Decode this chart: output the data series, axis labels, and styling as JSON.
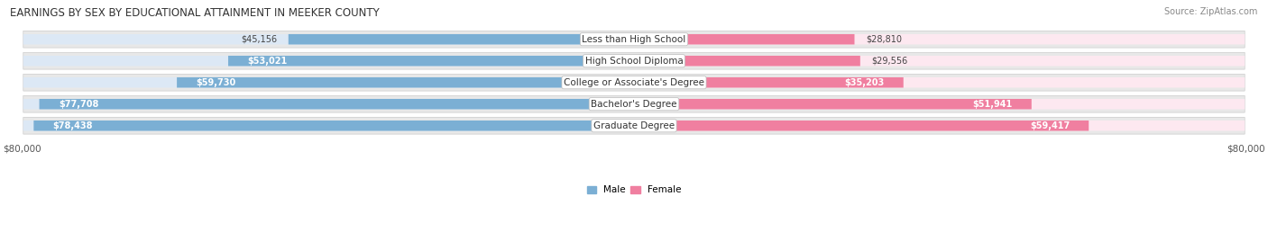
{
  "title": "EARNINGS BY SEX BY EDUCATIONAL ATTAINMENT IN MEEKER COUNTY",
  "source": "Source: ZipAtlas.com",
  "categories": [
    "Less than High School",
    "High School Diploma",
    "College or Associate's Degree",
    "Bachelor's Degree",
    "Graduate Degree"
  ],
  "male_values": [
    45156,
    53021,
    59730,
    77708,
    78438
  ],
  "female_values": [
    28810,
    29556,
    35203,
    51941,
    59417
  ],
  "male_color": "#7bafd4",
  "female_color": "#f07fa0",
  "male_label": "Male",
  "female_label": "Female",
  "xlim": 80000,
  "bg_color": "#ffffff",
  "row_bg_color": "#e8e8e8",
  "bar_inner_bg_male": "#dce8f5",
  "bar_inner_bg_female": "#fde8f0",
  "title_fontsize": 8.5,
  "source_fontsize": 7,
  "label_fontsize": 7.5,
  "value_fontsize": 7,
  "axis_label_fontsize": 7.5
}
